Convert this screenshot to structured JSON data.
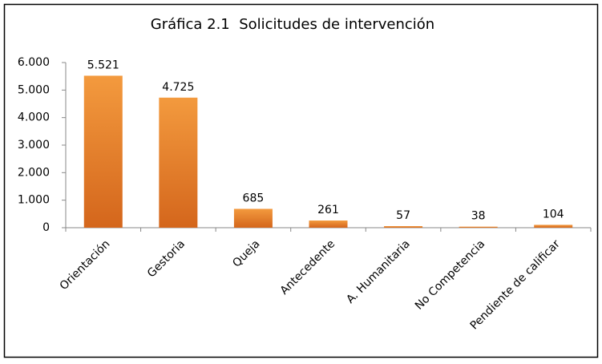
{
  "chart_data": {
    "type": "bar",
    "title": "Gráfica 2.1  Solicitudes de intervención",
    "categories": [
      "Orientación",
      "Gestoria",
      "Queja",
      "Antecedente",
      "A. Humanitaria",
      "No Competencia",
      "Pendiente de calificar"
    ],
    "values": [
      5521,
      4725,
      685,
      261,
      57,
      38,
      104
    ],
    "value_labels": [
      "5.521",
      "4.725",
      "685",
      "261",
      "57",
      "38",
      "104"
    ],
    "color": "#f39a3e",
    "ylim": [
      0,
      6000
    ],
    "yticks": [
      0,
      {
        "value": 1000,
        "label": "1.000"
      },
      {
        "value": 2000,
        "label": "2.000"
      },
      {
        "value": 3000,
        "label": "3.000"
      },
      {
        "value": 4000,
        "label": "4.000"
      },
      {
        "value": 5000,
        "label": "5.000"
      },
      {
        "value": 6000,
        "label": "6.000"
      }
    ],
    "grid": false
  }
}
